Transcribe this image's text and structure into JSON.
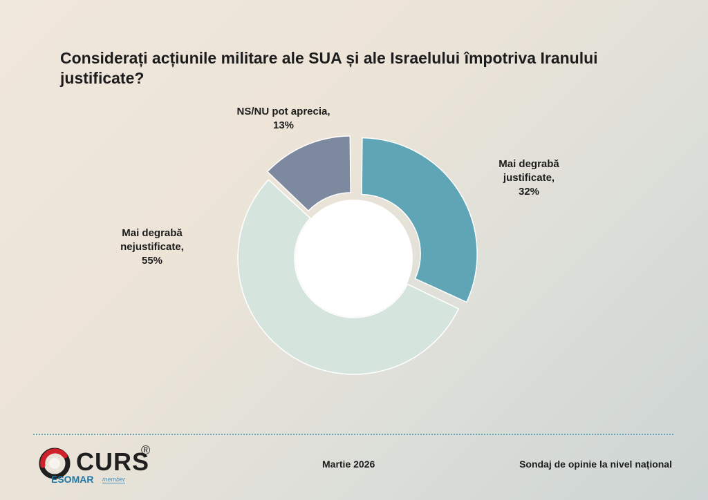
{
  "chart_data": {
    "type": "pie",
    "title": "Considerați acțiunile militare ale SUA și ale Israelului împotriva Iranului justificate?",
    "slices": [
      {
        "name": "Mai degrabă justificate",
        "value": 32,
        "value_label": "32%",
        "color": "#5fa5b6"
      },
      {
        "name": "Mai degrabă nejustificate",
        "value": 55,
        "value_label": "55%",
        "color": "#d6e4de"
      },
      {
        "name": "NS/NU pot aprecia",
        "value": 13,
        "value_label": "13%",
        "color": "#7d899e"
      }
    ],
    "labels": {
      "ns": [
        "NS/NU pot aprecia,",
        "13%"
      ],
      "just": [
        "Mai degrabă",
        "justificate,",
        "32%"
      ],
      "nej": [
        "Mai degrabă",
        "nejustificate,",
        "55%"
      ]
    }
  },
  "footer": {
    "date": "Martie 2026",
    "note": "Sondaj de opinie la nivel național",
    "logo": {
      "name": "CURS",
      "reg": "®",
      "esomar": "ESOMAR",
      "member": "member"
    }
  },
  "colors": {
    "accent": "#5fa5b6",
    "divider": "#6aa3b3",
    "esomar": "#1d76a6",
    "logo_red": "#d0202a"
  }
}
